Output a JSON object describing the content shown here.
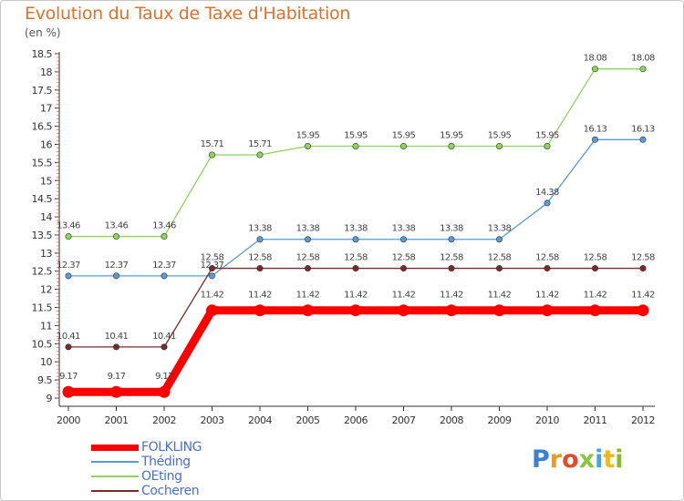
{
  "chart_data": {
    "type": "line",
    "title": "Evolution du Taux de Taxe d'Habitation",
    "ylabel": "(en %)",
    "xlabel": "",
    "x": [
      "2000",
      "2001",
      "2002",
      "2003",
      "2004",
      "2005",
      "2006",
      "2007",
      "2008",
      "2009",
      "2010",
      "2011",
      "2012"
    ],
    "ylim": [
      9,
      18.5
    ],
    "yticks": [
      "9",
      "9.5",
      "10",
      "10.5",
      "11",
      "11.5",
      "12",
      "12.5",
      "13",
      "13.5",
      "14",
      "14.5",
      "15",
      "15.5",
      "16",
      "16.5",
      "17",
      "17.5",
      "18",
      "18.5"
    ],
    "grid": false,
    "legend_position": "bottom-left",
    "series": [
      {
        "name": "FOLKLING",
        "color": "#ff0000",
        "values": [
          9.17,
          9.17,
          9.17,
          11.42,
          11.42,
          11.42,
          11.42,
          11.42,
          11.42,
          11.42,
          11.42,
          11.42,
          11.42
        ],
        "labels": [
          "9.17",
          "9.17",
          "9.17",
          "11.42",
          "11.42",
          "11.42",
          "11.42",
          "11.42",
          "11.42",
          "11.42",
          "11.42",
          "11.42",
          "11.42"
        ]
      },
      {
        "name": "Théding",
        "color": "#5b9bd5",
        "values": [
          12.37,
          12.37,
          12.37,
          12.37,
          13.38,
          13.38,
          13.38,
          13.38,
          13.38,
          13.38,
          14.38,
          16.13,
          16.13
        ],
        "labels": [
          "12.37",
          "12.37",
          "12.37",
          "12.37",
          "13.38",
          "13.38",
          "13.38",
          "13.38",
          "13.38",
          "13.38",
          "14.38",
          "16.13",
          "16.13"
        ]
      },
      {
        "name": "OEting",
        "color": "#8fd45a",
        "values": [
          13.46,
          13.46,
          13.46,
          15.71,
          15.71,
          15.95,
          15.95,
          15.95,
          15.95,
          15.95,
          15.95,
          18.08,
          18.08
        ],
        "labels": [
          "13.46",
          "13.46",
          "13.46",
          "15.71",
          "15.71",
          "15.95",
          "15.95",
          "15.95",
          "15.95",
          "15.95",
          "15.95",
          "18.08",
          "18.08"
        ]
      },
      {
        "name": "Cocheren",
        "color": "#7a2a2a",
        "values": [
          10.41,
          10.41,
          10.41,
          12.58,
          12.58,
          12.58,
          12.58,
          12.58,
          12.58,
          12.58,
          12.58,
          12.58,
          12.58
        ],
        "labels": [
          "10.41",
          "10.41",
          "10.41",
          "12.58",
          "12.58",
          "12.58",
          "12.58",
          "12.58",
          "12.58",
          "12.58",
          "12.58",
          "12.58",
          "12.58"
        ]
      }
    ]
  },
  "legend": [
    {
      "label": "FOLKLING",
      "color": "#ff0000"
    },
    {
      "label": "Théding",
      "color": "#5b9bd5"
    },
    {
      "label": "OEting",
      "color": "#8fd45a"
    },
    {
      "label": "Cocheren",
      "color": "#7a2a2a"
    }
  ],
  "logo": {
    "letters": [
      "P",
      "r",
      "o",
      "x",
      "i",
      "t",
      "i"
    ]
  }
}
